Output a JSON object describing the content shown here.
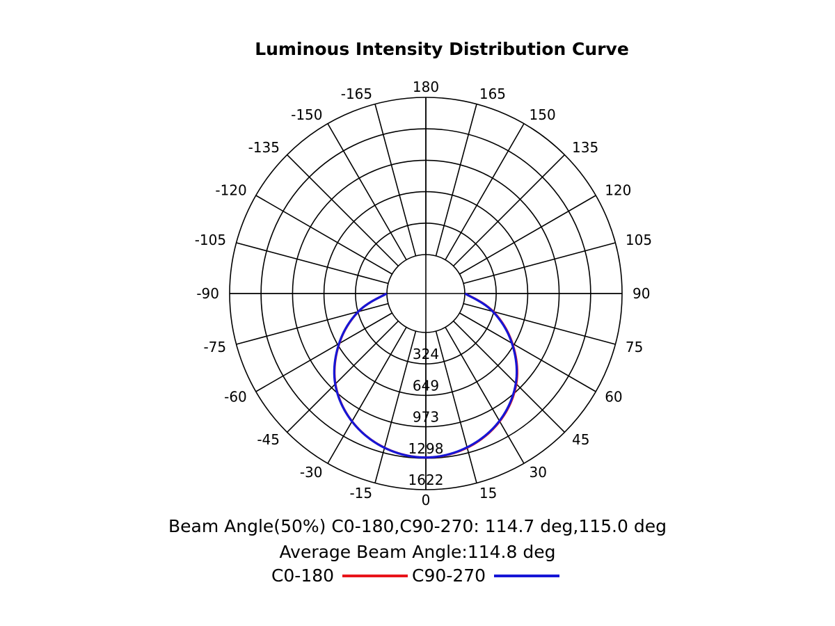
{
  "chart_data": {
    "type": "polar",
    "title": "Luminous Intensity Distribution Curve",
    "angle_ticks": [
      180,
      165,
      150,
      135,
      120,
      105,
      90,
      75,
      60,
      45,
      30,
      15,
      0,
      -15,
      -30,
      -45,
      -60,
      -75,
      -90,
      -105,
      -120,
      -135,
      -150,
      -165
    ],
    "radial_ticks": [
      324,
      649,
      973,
      1298,
      1622
    ],
    "rmax": 1622,
    "grid": true,
    "series": [
      {
        "name": "C0-180",
        "color": "#e8141a",
        "angles": [
          -90,
          -75,
          -60,
          -45,
          -30,
          -15,
          0,
          15,
          30,
          45,
          60,
          75,
          90
        ],
        "values": [
          5,
          318,
          629,
          917,
          1121,
          1245,
          1290,
          1245,
          1121,
          917,
          629,
          318,
          5
        ]
      },
      {
        "name": "C90-270",
        "color": "#1616d6",
        "angles": [
          -90,
          -75,
          -60,
          -45,
          -30,
          -15,
          0,
          15,
          30,
          45,
          60,
          75,
          90
        ],
        "values": [
          3,
          320,
          632,
          920,
          1122,
          1246,
          1290,
          1241,
          1116,
          910,
          623,
          312,
          3
        ]
      }
    ]
  },
  "info": {
    "beam_angle": "Beam Angle(50%) C0-180,C90-270: 114.7 deg,115.0 deg",
    "average_beam": "Average Beam Angle:114.8 deg"
  },
  "legend": {
    "c0": "C0-180",
    "c90": "C90-270",
    "c0_color": "#e8141a",
    "c90_color": "#1616d6"
  }
}
